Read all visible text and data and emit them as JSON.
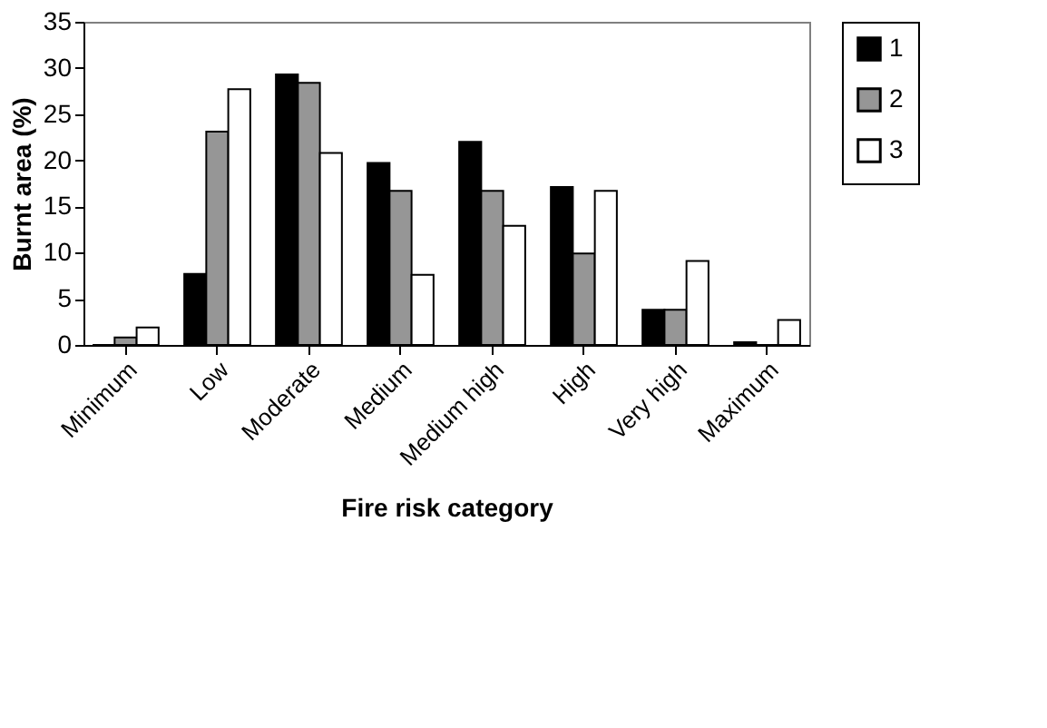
{
  "chart_data": {
    "type": "bar",
    "xlabel": "Fire risk category",
    "ylabel": "Burnt area (%)",
    "categories": [
      "Minimum",
      "Low",
      "Moderate",
      "Medium",
      "Medium high",
      "High",
      "Very high",
      "Maximum"
    ],
    "series": [
      {
        "name": "1",
        "color": "#000000",
        "values": [
          0,
          7.7,
          29.3,
          19.7,
          22,
          17.1,
          3.8,
          0.3
        ]
      },
      {
        "name": "2",
        "color": "#969696",
        "values": [
          0.8,
          23.1,
          28.4,
          16.7,
          16.7,
          9.9,
          3.8,
          0
        ]
      },
      {
        "name": "3",
        "color": "#ffffff",
        "values": [
          1.9,
          27.7,
          20.8,
          7.6,
          12.9,
          16.7,
          9.1,
          2.7
        ]
      }
    ],
    "ylim": [
      0,
      35
    ],
    "yticks": [
      0,
      5,
      10,
      15,
      20,
      25,
      30,
      35
    ],
    "grid": false,
    "legend": "right"
  }
}
